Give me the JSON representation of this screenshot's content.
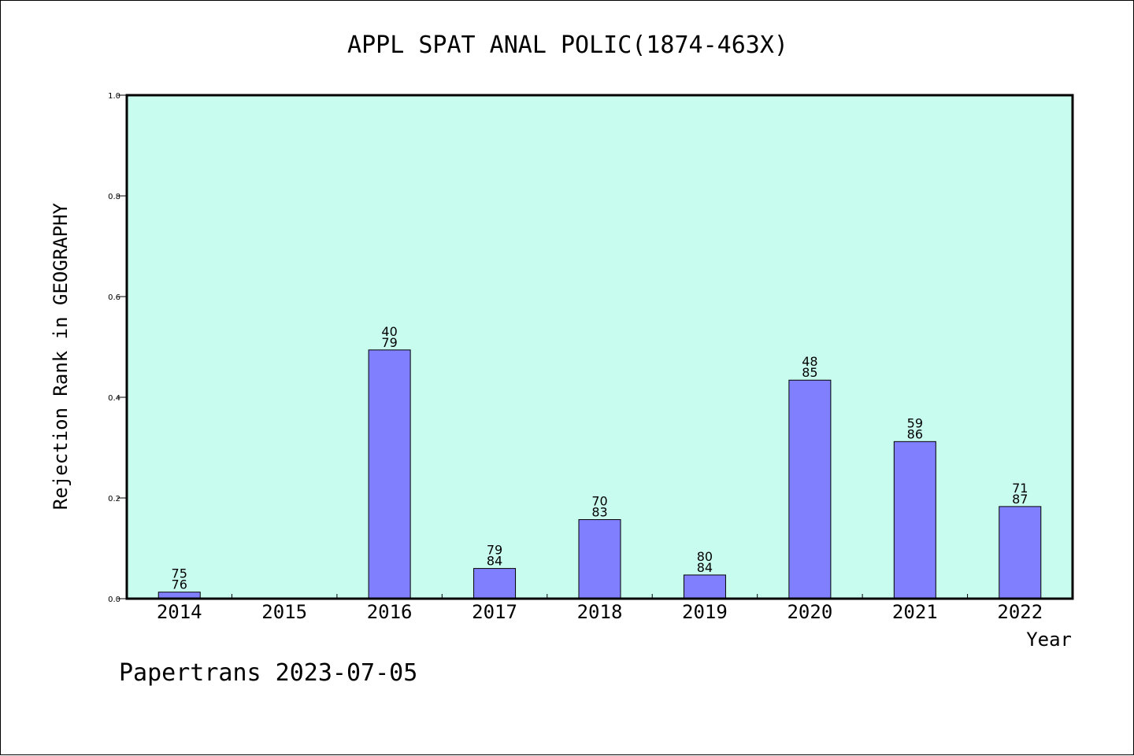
{
  "chart_data": {
    "type": "bar",
    "title": "APPL SPAT ANAL POLIC(1874-463X)",
    "xlabel": "Year",
    "ylabel": "Rejection Rank in GEOGRAPHY",
    "ylim": [
      0,
      1.0
    ],
    "yticks": [
      "0.0",
      "0.2",
      "0.4",
      "0.6",
      "0.8",
      "1.0"
    ],
    "grid": false,
    "categories": [
      "2014",
      "2015",
      "2016",
      "2017",
      "2018",
      "2019",
      "2020",
      "2021",
      "2022"
    ],
    "values": [
      0.013,
      null,
      0.494,
      0.06,
      0.157,
      0.047,
      0.434,
      0.312,
      0.183
    ],
    "labels_top": [
      "75",
      null,
      "40",
      "79",
      "70",
      "80",
      "48",
      "59",
      "71"
    ],
    "labels_bottom": [
      "76",
      null,
      "79",
      "84",
      "83",
      "84",
      "85",
      "86",
      "87"
    ],
    "colors": {
      "plot_background": "#c8fcee",
      "bar_fill": "#8080ff",
      "bar_stroke": "#000000",
      "axis": "#000000"
    }
  },
  "footer": {
    "text": "Papertrans 2023-07-05"
  }
}
